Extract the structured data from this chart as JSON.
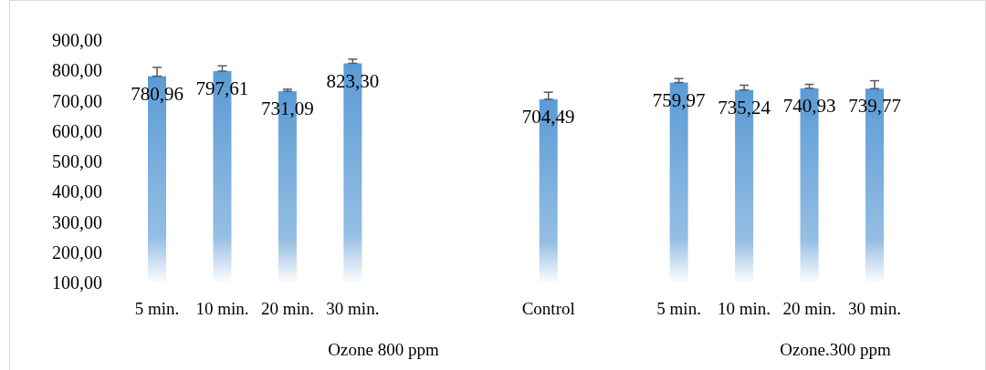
{
  "chart_data": {
    "type": "bar",
    "categories": [
      "5 min.",
      "10 min.",
      "20 min.",
      "30 min.",
      null,
      null,
      "Control",
      null,
      "5 min.",
      "10 min.",
      "20 min.",
      "30 min."
    ],
    "values": [
      780.96,
      797.61,
      731.09,
      823.3,
      null,
      null,
      704.49,
      null,
      759.97,
      735.24,
      740.93,
      739.77
    ],
    "errors": [
      [
        780.96,
        810
      ],
      [
        797.61,
        815
      ],
      [
        731.09,
        738
      ],
      [
        823.3,
        837
      ],
      null,
      null,
      [
        704.49,
        728
      ],
      null,
      [
        759.97,
        773
      ],
      [
        735.24,
        751
      ],
      [
        740.93,
        754
      ],
      [
        739.77,
        766
      ]
    ],
    "color": "#5b9bd5",
    "data_labels": true,
    "value_labels": [
      "780,96",
      "797,61",
      "731,09",
      "823,30",
      null,
      null,
      "704,49",
      null,
      "759,97",
      "735,24",
      "740,93",
      "739,77"
    ],
    "ylim": [
      100,
      900
    ],
    "yticks": [
      {
        "value": 100,
        "label": "100,00"
      },
      {
        "value": 200,
        "label": "200,00"
      },
      {
        "value": 300,
        "label": "300,00"
      },
      {
        "value": 400,
        "label": "400,00"
      },
      {
        "value": 500,
        "label": "500,00"
      },
      {
        "value": 600,
        "label": "600,00"
      },
      {
        "value": 700,
        "label": "700,00"
      },
      {
        "value": 800,
        "label": "800,00"
      },
      {
        "value": 900,
        "label": "900,00"
      }
    ],
    "annotations": [
      "Ozone 800 ppm",
      "Ozone.300 ppm"
    ]
  }
}
